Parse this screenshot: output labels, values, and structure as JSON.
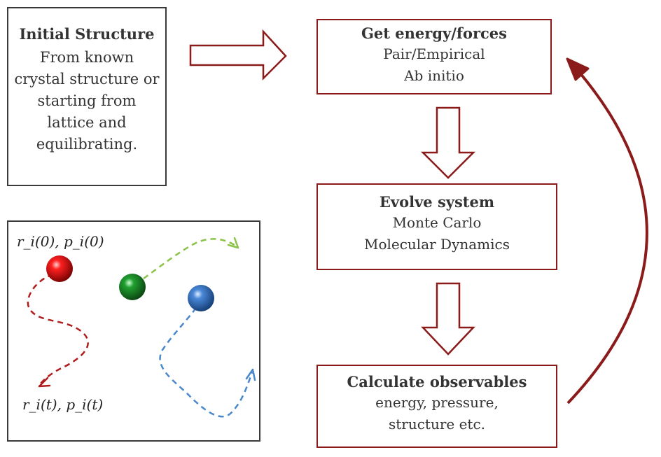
{
  "initial_structure": {
    "title": "Initial Structure",
    "lines": [
      "From known",
      "crystal structure or",
      "starting from",
      "lattice and",
      "equilibrating."
    ]
  },
  "energy_forces": {
    "title": "Get energy/forces",
    "lines": [
      "Pair/Empirical",
      "Ab initio"
    ]
  },
  "evolve_system": {
    "title": "Evolve system",
    "lines": [
      "Monte Carlo",
      "Molecular Dynamics"
    ]
  },
  "calculate_observables": {
    "title": "Calculate observables",
    "lines": [
      "energy, pressure,",
      "structure etc."
    ]
  },
  "particles_panel": {
    "label_initial": "r_i(0), p_i(0)",
    "label_final": "r_i(t), p_i(t)",
    "colors": {
      "red": "#d40000",
      "green": "#1a8a2a",
      "blue": "#3a78c8",
      "red_path": "#b01c1c",
      "green_path": "#8bc34a",
      "blue_path": "#4a88cc"
    }
  },
  "colors": {
    "accent": "#8b1a1a",
    "panel_border": "#3a3a3a"
  }
}
